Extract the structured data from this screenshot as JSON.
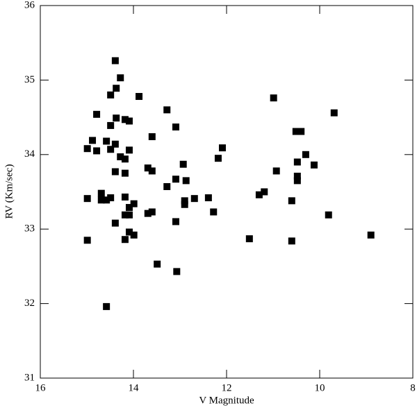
{
  "chart_data": {
    "type": "scatter",
    "x_label": "V Magnitude",
    "y_label": "RV (Km/sec)",
    "xlim": [
      16,
      8
    ],
    "ylim": [
      31,
      36
    ],
    "xticks": [
      16,
      14,
      12,
      10,
      8
    ],
    "yticks": [
      31,
      32,
      33,
      34,
      35,
      36
    ],
    "color": "#000000",
    "x": [
      14.39,
      14.28,
      14.37,
      14.49,
      13.88,
      14.79,
      13.28,
      14.37,
      14.18,
      14.09,
      14.49,
      13.09,
      13.6,
      14.88,
      14.58,
      14.39,
      14.99,
      14.49,
      14.09,
      14.79,
      14.28,
      14.18,
      13.69,
      14.39,
      13.6,
      14.18,
      12.93,
      13.09,
      12.87,
      13.28,
      14.69,
      14.49,
      14.99,
      14.69,
      14.58,
      14.18,
      13.99,
      12.9,
      12.69,
      12.39,
      12.9,
      14.09,
      13.6,
      13.69,
      12.28,
      14.18,
      14.09,
      14.39,
      13.09,
      14.09,
      13.99,
      14.18,
      14.99,
      13.49,
      13.07,
      14.58,
      10.99,
      9.69,
      10.51,
      10.4,
      12.09,
      10.3,
      12.18,
      10.48,
      10.12,
      10.93,
      10.48,
      10.48,
      11.19,
      11.3,
      10.6,
      9.81,
      11.51,
      10.6,
      8.9
    ],
    "y": [
      35.26,
      35.03,
      34.89,
      34.8,
      34.78,
      34.54,
      34.6,
      34.49,
      34.47,
      34.45,
      34.39,
      34.37,
      34.24,
      34.19,
      34.18,
      34.14,
      34.08,
      34.07,
      34.06,
      34.05,
      33.97,
      33.94,
      33.82,
      33.77,
      33.78,
      33.75,
      33.87,
      33.67,
      33.65,
      33.57,
      33.48,
      33.42,
      33.41,
      33.39,
      33.39,
      33.43,
      33.34,
      33.38,
      33.41,
      33.42,
      33.33,
      33.29,
      33.23,
      33.21,
      33.23,
      33.19,
      33.19,
      33.08,
      33.1,
      32.96,
      32.92,
      32.86,
      32.85,
      32.53,
      32.43,
      31.96,
      34.76,
      34.56,
      34.31,
      34.31,
      34.09,
      34.0,
      33.95,
      33.9,
      33.86,
      33.78,
      33.71,
      33.65,
      33.5,
      33.46,
      33.38,
      33.19,
      32.87,
      32.84,
      32.92
    ]
  }
}
